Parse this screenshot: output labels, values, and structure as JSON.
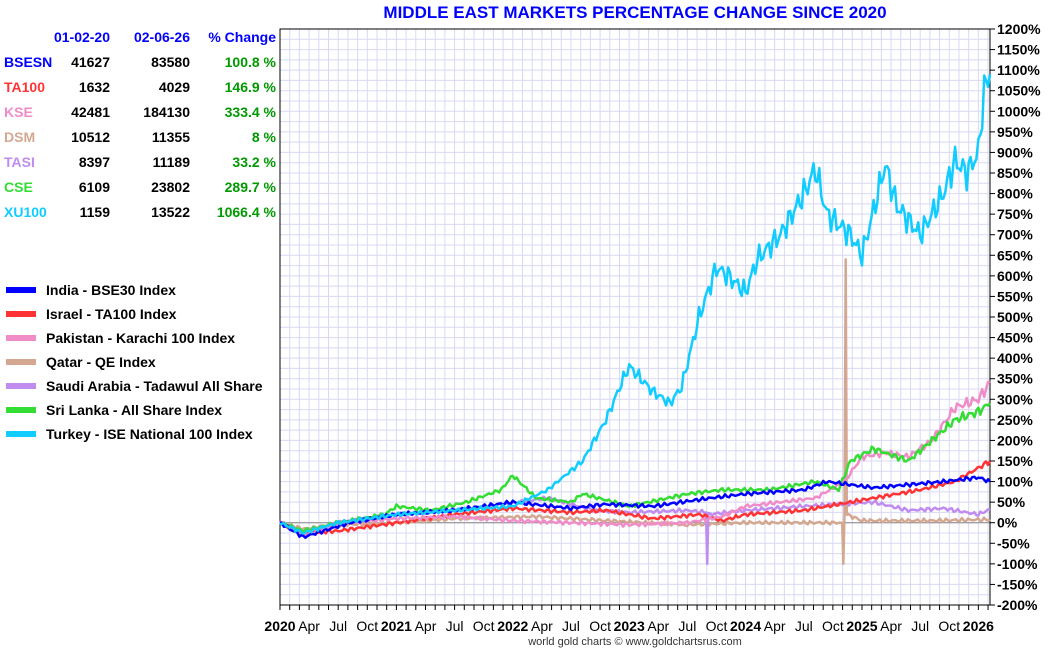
{
  "chart_data": {
    "type": "line",
    "title": "MIDDLE EAST MARKETS PERCENTAGE CHANGE SINCE 2020",
    "ylim": [
      -200,
      1200
    ],
    "xlim": [
      2020.0,
      2026.1
    ],
    "y_ticks": [
      "1200%",
      "1150%",
      "1100%",
      "1050%",
      "1000%",
      "950%",
      "900%",
      "850%",
      "800%",
      "750%",
      "700%",
      "650%",
      "600%",
      "550%",
      "500%",
      "450%",
      "400%",
      "350%",
      "300%",
      "250%",
      "200%",
      "150%",
      "100%",
      "50%",
      "0%",
      "-50%",
      "-100%",
      "-150%",
      "-200%"
    ],
    "x_ticks": [
      {
        "label": "2020",
        "bold": true
      },
      {
        "label": "Apr"
      },
      {
        "label": "Jul"
      },
      {
        "label": "Oct"
      },
      {
        "label": "2021",
        "bold": true
      },
      {
        "label": "Apr"
      },
      {
        "label": "Jul"
      },
      {
        "label": "Oct"
      },
      {
        "label": "2022",
        "bold": true
      },
      {
        "label": "Apr"
      },
      {
        "label": "Jul"
      },
      {
        "label": "Oct"
      },
      {
        "label": "2023",
        "bold": true
      },
      {
        "label": "Apr"
      },
      {
        "label": "Jul"
      },
      {
        "label": "Oct"
      },
      {
        "label": "2024",
        "bold": true
      },
      {
        "label": "Apr"
      },
      {
        "label": "Jul"
      },
      {
        "label": "Oct"
      },
      {
        "label": "2025",
        "bold": true
      },
      {
        "label": "Apr"
      },
      {
        "label": "Jul"
      },
      {
        "label": "Oct"
      },
      {
        "label": "2026",
        "bold": true
      }
    ],
    "legend_position": "left",
    "series": [
      {
        "name": "Qatar - QE Index",
        "color": "#d4a890",
        "points": [
          [
            2020,
            0
          ],
          [
            2020.2,
            -15
          ],
          [
            2020.5,
            -5
          ],
          [
            2021,
            0
          ],
          [
            2021.5,
            10
          ],
          [
            2022.2,
            15
          ],
          [
            2022.8,
            5
          ],
          [
            2023.5,
            -5
          ],
          [
            2024,
            0
          ],
          [
            2024.5,
            0
          ],
          [
            2024.83,
            0
          ],
          [
            2024.84,
            -100
          ],
          [
            2024.85,
            20
          ],
          [
            2024.86,
            640
          ],
          [
            2024.87,
            20
          ],
          [
            2025,
            5
          ],
          [
            2025.6,
            5
          ],
          [
            2026.1,
            8
          ]
        ]
      },
      {
        "name": "Saudi Arabia - Tadawul All Share",
        "color": "#c08cf0",
        "points": [
          [
            2020,
            0
          ],
          [
            2020.2,
            -25
          ],
          [
            2020.5,
            0
          ],
          [
            2021,
            20
          ],
          [
            2021.8,
            40
          ],
          [
            2022.3,
            60
          ],
          [
            2022.7,
            30
          ],
          [
            2023,
            25
          ],
          [
            2023.5,
            30
          ],
          [
            2023.66,
            25
          ],
          [
            2023.67,
            -100
          ],
          [
            2023.68,
            20
          ],
          [
            2024,
            30
          ],
          [
            2024.5,
            40
          ],
          [
            2024.8,
            45
          ],
          [
            2025.1,
            50
          ],
          [
            2025.4,
            30
          ],
          [
            2025.7,
            35
          ],
          [
            2026,
            20
          ],
          [
            2026.1,
            33
          ]
        ]
      },
      {
        "name": "Israel - TA100 Index",
        "color": "#ff3333",
        "points": [
          [
            2020,
            0
          ],
          [
            2020.2,
            -25
          ],
          [
            2020.5,
            -20
          ],
          [
            2021,
            0
          ],
          [
            2021.5,
            20
          ],
          [
            2022,
            35
          ],
          [
            2022.5,
            25
          ],
          [
            2022.8,
            30
          ],
          [
            2023.2,
            10
          ],
          [
            2023.6,
            20
          ],
          [
            2023.8,
            5
          ],
          [
            2024,
            20
          ],
          [
            2024.5,
            30
          ],
          [
            2024.9,
            50
          ],
          [
            2025.2,
            65
          ],
          [
            2025.5,
            80
          ],
          [
            2025.8,
            100
          ],
          [
            2026.1,
            150
          ]
        ]
      },
      {
        "name": "Pakistan - Karachi 100 Index",
        "color": "#f08cc8",
        "points": [
          [
            2020,
            0
          ],
          [
            2020.2,
            -30
          ],
          [
            2020.6,
            0
          ],
          [
            2021,
            10
          ],
          [
            2021.5,
            15
          ],
          [
            2022,
            5
          ],
          [
            2022.5,
            0
          ],
          [
            2023,
            -5
          ],
          [
            2023.5,
            0
          ],
          [
            2023.8,
            15
          ],
          [
            2024,
            40
          ],
          [
            2024.3,
            50
          ],
          [
            2024.6,
            60
          ],
          [
            2024.85,
            100
          ],
          [
            2025,
            160
          ],
          [
            2025.2,
            170
          ],
          [
            2025.4,
            160
          ],
          [
            2025.6,
            200
          ],
          [
            2025.8,
            280
          ],
          [
            2026,
            300
          ],
          [
            2026.1,
            340
          ]
        ]
      },
      {
        "name": "Sri Lanka - All Share Index",
        "color": "#33dd33",
        "points": [
          [
            2020,
            0
          ],
          [
            2020.2,
            -20
          ],
          [
            2020.5,
            0
          ],
          [
            2020.9,
            20
          ],
          [
            2021,
            40
          ],
          [
            2021.3,
            30
          ],
          [
            2021.6,
            50
          ],
          [
            2021.9,
            80
          ],
          [
            2022,
            115
          ],
          [
            2022.2,
            60
          ],
          [
            2022.5,
            50
          ],
          [
            2022.6,
            70
          ],
          [
            2023,
            40
          ],
          [
            2023.5,
            70
          ],
          [
            2023.8,
            80
          ],
          [
            2024.2,
            80
          ],
          [
            2024.6,
            100
          ],
          [
            2024.8,
            80
          ],
          [
            2024.9,
            150
          ],
          [
            2025.1,
            180
          ],
          [
            2025.4,
            150
          ],
          [
            2025.6,
            200
          ],
          [
            2025.8,
            250
          ],
          [
            2026,
            270
          ],
          [
            2026.1,
            290
          ]
        ]
      },
      {
        "name": "India - BSE30 Index",
        "color": "#0000ff",
        "points": [
          [
            2020,
            0
          ],
          [
            2020.2,
            -35
          ],
          [
            2020.6,
            0
          ],
          [
            2021,
            20
          ],
          [
            2021.5,
            30
          ],
          [
            2022,
            50
          ],
          [
            2022.5,
            35
          ],
          [
            2022.8,
            45
          ],
          [
            2023.2,
            40
          ],
          [
            2023.7,
            60
          ],
          [
            2024,
            70
          ],
          [
            2024.5,
            80
          ],
          [
            2024.7,
            100
          ],
          [
            2025.1,
            85
          ],
          [
            2025.5,
            95
          ],
          [
            2025.7,
            100
          ],
          [
            2026,
            110
          ],
          [
            2026.1,
            100
          ]
        ]
      },
      {
        "name": "Turkey - ISE National 100 Index",
        "color": "#11ccff",
        "points": [
          [
            2020,
            0
          ],
          [
            2020.2,
            -25
          ],
          [
            2020.5,
            0
          ],
          [
            2021,
            20
          ],
          [
            2021.5,
            30
          ],
          [
            2022,
            40
          ],
          [
            2022.3,
            80
          ],
          [
            2022.6,
            150
          ],
          [
            2022.8,
            250
          ],
          [
            2022.95,
            350
          ],
          [
            2023,
            380
          ],
          [
            2023.2,
            320
          ],
          [
            2023.35,
            290
          ],
          [
            2023.45,
            330
          ],
          [
            2023.6,
            500
          ],
          [
            2023.75,
            620
          ],
          [
            2023.85,
            600
          ],
          [
            2024,
            560
          ],
          [
            2024.1,
            640
          ],
          [
            2024.3,
            700
          ],
          [
            2024.5,
            800
          ],
          [
            2024.6,
            860
          ],
          [
            2024.7,
            750
          ],
          [
            2024.9,
            700
          ],
          [
            2025,
            650
          ],
          [
            2025.2,
            870
          ],
          [
            2025.3,
            770
          ],
          [
            2025.5,
            700
          ],
          [
            2025.7,
            800
          ],
          [
            2025.8,
            880
          ],
          [
            2025.9,
            850
          ],
          [
            2026,
            900
          ],
          [
            2026.05,
            1050
          ],
          [
            2026.1,
            1090
          ]
        ]
      }
    ],
    "legend_order": [
      5,
      2,
      3,
      0,
      1,
      4,
      6
    ]
  },
  "table": {
    "headers": [
      "",
      "01-02-20",
      "02-06-26",
      "% Change"
    ],
    "rows": [
      {
        "sym": "BSESN",
        "color": "#0000ff",
        "start": "41627",
        "end": "83580",
        "chg": "100.8 %"
      },
      {
        "sym": "TA100",
        "color": "#ff3333",
        "start": "1632",
        "end": "4029",
        "chg": "146.9 %"
      },
      {
        "sym": "KSE",
        "color": "#f08cc8",
        "start": "42481",
        "end": "184130",
        "chg": "333.4 %"
      },
      {
        "sym": "DSM",
        "color": "#d4a890",
        "start": "10512",
        "end": "11355",
        "chg": "8 %"
      },
      {
        "sym": "TASI",
        "color": "#c08cf0",
        "start": "8397",
        "end": "11189",
        "chg": "33.2 %"
      },
      {
        "sym": "CSE",
        "color": "#33dd33",
        "start": "6109",
        "end": "23802",
        "chg": "289.7 %"
      },
      {
        "sym": "XU100",
        "color": "#11ccff",
        "start": "1159",
        "end": "13522",
        "chg": "1066.4 %"
      }
    ]
  },
  "credit": "world gold charts © www.goldchartsrus.com"
}
